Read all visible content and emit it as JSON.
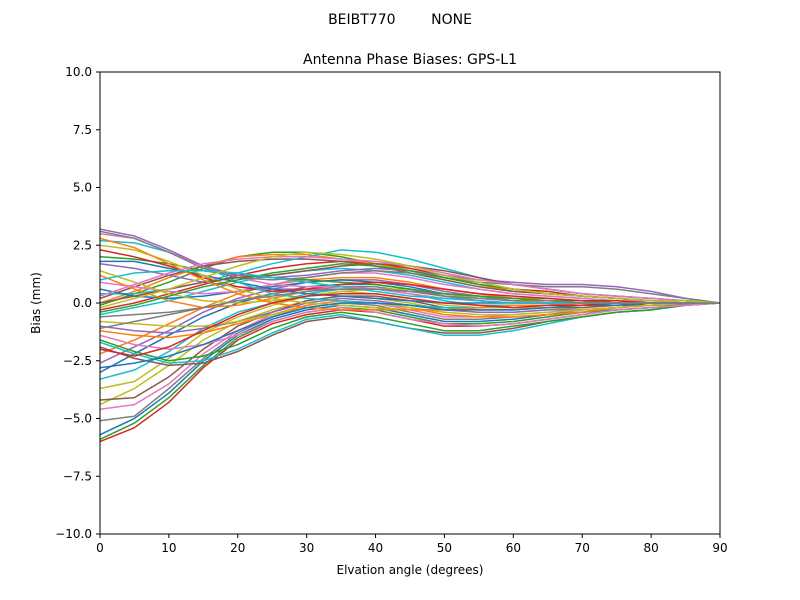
{
  "chart_data": {
    "type": "line",
    "suptitle": "BEIBT770        NONE",
    "title": "Antenna Phase Biases: GPS-L1",
    "xlabel": "Elvation angle (degrees)",
    "ylabel": "Bias (mm)",
    "xlim": [
      0,
      90
    ],
    "ylim": [
      -10,
      10
    ],
    "xticks": [
      "0",
      "10",
      "20",
      "30",
      "40",
      "50",
      "60",
      "70",
      "80",
      "90"
    ],
    "yticks": [
      "-10.0",
      "-7.5",
      "-5.0",
      "-2.5",
      "0.0",
      "2.5",
      "5.0",
      "7.5",
      "10.0"
    ],
    "grid": false,
    "legend": "none",
    "x": [
      0,
      5,
      10,
      15,
      20,
      25,
      30,
      35,
      40,
      45,
      50,
      55,
      60,
      65,
      70,
      75,
      80,
      85,
      90
    ],
    "series": [
      {
        "color": "#d62728",
        "values": [
          -6.0,
          -5.4,
          -4.3,
          -2.8,
          -1.6,
          -0.9,
          -0.5,
          -0.3,
          -0.4,
          -0.7,
          -1.0,
          -1.0,
          -0.9,
          -0.7,
          -0.5,
          -0.3,
          -0.2,
          -0.1,
          0.0
        ]
      },
      {
        "color": "#2ca02c",
        "values": [
          -5.9,
          -5.2,
          -4.1,
          -2.7,
          -1.5,
          -0.8,
          -0.4,
          -0.2,
          -0.3,
          -0.6,
          -0.9,
          -0.9,
          -0.8,
          -0.6,
          -0.4,
          -0.3,
          -0.2,
          -0.1,
          0.0
        ]
      },
      {
        "color": "#1f77b4",
        "values": [
          -5.7,
          -5.0,
          -3.9,
          -2.5,
          -1.4,
          -0.7,
          -0.3,
          -0.1,
          -0.2,
          -0.5,
          -0.8,
          -0.8,
          -0.7,
          -0.5,
          -0.4,
          -0.2,
          -0.1,
          -0.05,
          0.0
        ]
      },
      {
        "color": "#7f7f7f",
        "values": [
          -5.1,
          -4.9,
          -3.7,
          -2.4,
          -1.3,
          -0.6,
          -0.2,
          0.0,
          -0.1,
          -0.4,
          -0.7,
          -0.7,
          -0.6,
          -0.5,
          -0.3,
          -0.2,
          -0.1,
          -0.05,
          0.0
        ]
      },
      {
        "color": "#e377c2",
        "values": [
          -4.6,
          -4.4,
          -3.5,
          -2.2,
          -1.2,
          -0.5,
          -0.1,
          0.1,
          0.0,
          -0.3,
          -0.6,
          -0.6,
          -0.5,
          -0.4,
          -0.3,
          -0.2,
          -0.1,
          0.0,
          0.0
        ]
      },
      {
        "color": "#bcbd22",
        "values": [
          -4.4,
          -3.7,
          -2.7,
          -1.6,
          -0.8,
          -0.3,
          0.1,
          0.3,
          0.2,
          0.0,
          -0.3,
          -0.4,
          -0.4,
          -0.3,
          -0.2,
          -0.1,
          -0.1,
          0.0,
          0.0
        ]
      },
      {
        "color": "#8c564b",
        "values": [
          -4.2,
          -4.1,
          -3.2,
          -2.0,
          -1.0,
          -0.4,
          0.1,
          0.3,
          0.3,
          0.1,
          -0.2,
          -0.3,
          -0.3,
          -0.2,
          -0.2,
          -0.1,
          -0.1,
          0.0,
          0.0
        ]
      },
      {
        "color": "#bcbd22",
        "values": [
          -3.7,
          -3.4,
          -2.4,
          -1.3,
          -0.6,
          -0.1,
          0.3,
          0.5,
          0.4,
          0.2,
          -0.1,
          -0.2,
          -0.2,
          -0.2,
          -0.1,
          -0.1,
          0.0,
          0.0,
          0.0
        ]
      },
      {
        "color": "#17becf",
        "values": [
          -3.3,
          -2.9,
          -2.1,
          -1.1,
          -0.4,
          0.0,
          0.4,
          0.6,
          0.6,
          0.4,
          0.1,
          -0.1,
          -0.1,
          -0.1,
          -0.1,
          0.0,
          0.0,
          0.0,
          0.0
        ]
      },
      {
        "color": "#1f77b4",
        "values": [
          -3.0,
          -2.2,
          -1.4,
          -0.6,
          0.0,
          0.4,
          0.7,
          0.8,
          0.8,
          0.6,
          0.3,
          0.1,
          0.0,
          0.0,
          0.0,
          0.0,
          0.0,
          0.0,
          0.0
        ]
      },
      {
        "color": "#9467bd",
        "values": [
          -2.6,
          -1.9,
          -1.2,
          -0.4,
          0.2,
          0.6,
          0.9,
          1.0,
          1.0,
          0.8,
          0.5,
          0.3,
          0.1,
          0.1,
          0.1,
          0.0,
          0.0,
          0.0,
          0.0
        ]
      },
      {
        "color": "#ff7f0e",
        "values": [
          -2.2,
          -1.6,
          -0.9,
          -0.2,
          0.4,
          0.8,
          1.0,
          1.1,
          1.1,
          0.9,
          0.6,
          0.4,
          0.2,
          0.2,
          0.1,
          0.1,
          0.0,
          0.0,
          0.0
        ]
      },
      {
        "color": "#8c564b",
        "values": [
          -1.9,
          -2.4,
          -2.7,
          -2.6,
          -2.1,
          -1.4,
          -0.8,
          -0.6,
          -0.8,
          -1.1,
          -1.3,
          -1.3,
          -1.1,
          -0.8,
          -0.6,
          -0.4,
          -0.3,
          -0.1,
          0.0
        ]
      },
      {
        "color": "#17becf",
        "values": [
          -1.7,
          -2.2,
          -2.6,
          -2.5,
          -2.0,
          -1.3,
          -0.7,
          -0.5,
          -0.8,
          -1.1,
          -1.4,
          -1.4,
          -1.2,
          -0.9,
          -0.6,
          -0.4,
          -0.3,
          -0.1,
          0.0
        ]
      },
      {
        "color": "#2ca02c",
        "values": [
          -1.6,
          -2.1,
          -2.5,
          -2.3,
          -1.8,
          -1.1,
          -0.6,
          -0.4,
          -0.6,
          -0.9,
          -1.2,
          -1.2,
          -1.0,
          -0.8,
          -0.6,
          -0.4,
          -0.3,
          -0.1,
          0.0
        ]
      },
      {
        "color": "#e377c2",
        "values": [
          -1.4,
          -1.8,
          -2.0,
          -1.8,
          -1.4,
          -0.8,
          -0.4,
          -0.2,
          -0.4,
          -0.7,
          -0.9,
          -1.0,
          -0.9,
          -0.7,
          -0.5,
          -0.3,
          -0.2,
          -0.1,
          0.0
        ]
      },
      {
        "color": "#ff7f0e",
        "values": [
          -1.2,
          -1.4,
          -1.5,
          -1.3,
          -0.9,
          -0.5,
          -0.1,
          0.1,
          0.0,
          -0.2,
          -0.5,
          -0.6,
          -0.6,
          -0.5,
          -0.4,
          -0.2,
          -0.1,
          0.0,
          0.0
        ]
      },
      {
        "color": "#9467bd",
        "values": [
          -1.0,
          -1.2,
          -1.3,
          -1.1,
          -0.8,
          -0.4,
          0.0,
          0.2,
          0.1,
          -0.1,
          -0.3,
          -0.4,
          -0.4,
          -0.3,
          -0.3,
          -0.2,
          -0.1,
          0.0,
          0.0
        ]
      },
      {
        "color": "#bcbd22",
        "values": [
          -0.8,
          -0.9,
          -1.0,
          -1.0,
          -0.8,
          -0.5,
          -0.2,
          0.0,
          0.0,
          -0.2,
          -0.4,
          -0.5,
          -0.5,
          -0.4,
          -0.3,
          -0.2,
          -0.1,
          0.0,
          0.0
        ]
      },
      {
        "color": "#7f7f7f",
        "values": [
          -0.6,
          -0.5,
          -0.4,
          -0.2,
          0.1,
          0.4,
          0.6,
          0.7,
          0.7,
          0.5,
          0.3,
          0.1,
          0.0,
          0.0,
          0.0,
          0.0,
          0.0,
          0.0,
          0.0
        ]
      },
      {
        "color": "#17becf",
        "values": [
          -0.5,
          -0.2,
          0.1,
          0.5,
          0.9,
          1.2,
          1.4,
          1.5,
          1.4,
          1.2,
          0.9,
          0.6,
          0.4,
          0.3,
          0.2,
          0.1,
          0.1,
          0.0,
          0.0
        ]
      },
      {
        "color": "#d62728",
        "values": [
          -0.3,
          0.0,
          0.4,
          0.8,
          1.2,
          1.5,
          1.7,
          1.8,
          1.7,
          1.5,
          1.2,
          0.9,
          0.6,
          0.5,
          0.3,
          0.2,
          0.1,
          0.1,
          0.0
        ]
      },
      {
        "color": "#2ca02c",
        "values": [
          -0.1,
          0.4,
          0.9,
          1.5,
          2.0,
          2.2,
          2.2,
          2.0,
          1.7,
          1.4,
          1.1,
          0.8,
          0.6,
          0.4,
          0.3,
          0.2,
          0.1,
          0.1,
          0.0
        ]
      },
      {
        "color": "#ff7f0e",
        "values": [
          0.0,
          0.5,
          1.1,
          1.6,
          2.0,
          2.1,
          2.1,
          1.9,
          1.7,
          1.4,
          1.1,
          0.8,
          0.5,
          0.4,
          0.3,
          0.2,
          0.1,
          0.1,
          0.0
        ]
      },
      {
        "color": "#8c564b",
        "values": [
          0.2,
          0.7,
          1.2,
          1.6,
          1.8,
          1.9,
          1.9,
          1.8,
          1.6,
          1.3,
          1.0,
          0.7,
          0.5,
          0.4,
          0.3,
          0.2,
          0.1,
          0.1,
          0.0
        ]
      },
      {
        "color": "#17becf",
        "values": [
          0.4,
          0.4,
          0.6,
          0.9,
          1.3,
          1.7,
          2.0,
          2.3,
          2.2,
          1.9,
          1.5,
          1.1,
          0.8,
          0.6,
          0.4,
          0.3,
          0.2,
          0.1,
          0.0
        ]
      },
      {
        "color": "#1f77b4",
        "values": [
          0.6,
          0.3,
          0.2,
          0.3,
          0.5,
          0.7,
          0.9,
          1.0,
          0.9,
          0.7,
          0.4,
          0.2,
          0.1,
          0.0,
          0.0,
          0.0,
          0.0,
          0.0,
          0.0
        ]
      },
      {
        "color": "#e377c2",
        "values": [
          0.9,
          0.7,
          0.5,
          0.4,
          0.5,
          0.8,
          1.1,
          1.3,
          1.3,
          1.1,
          0.8,
          0.6,
          0.4,
          0.3,
          0.2,
          0.1,
          0.1,
          0.0,
          0.0
        ]
      },
      {
        "color": "#ff7f0e",
        "values": [
          1.2,
          0.6,
          0.1,
          -0.2,
          -0.1,
          0.2,
          0.5,
          0.8,
          0.9,
          0.8,
          0.6,
          0.4,
          0.2,
          0.1,
          0.1,
          0.0,
          0.0,
          0.0,
          0.0
        ]
      },
      {
        "color": "#bcbd22",
        "values": [
          1.4,
          0.9,
          0.4,
          0.1,
          0.0,
          0.1,
          0.3,
          0.5,
          0.6,
          0.6,
          0.4,
          0.2,
          0.1,
          0.0,
          0.0,
          0.0,
          0.0,
          0.0,
          0.0
        ]
      },
      {
        "color": "#9467bd",
        "values": [
          1.7,
          1.5,
          1.2,
          0.9,
          0.7,
          0.6,
          0.6,
          0.6,
          0.6,
          0.5,
          0.4,
          0.3,
          0.2,
          0.1,
          0.1,
          0.0,
          0.0,
          0.0,
          0.0
        ]
      },
      {
        "color": "#1f77b4",
        "values": [
          1.8,
          1.8,
          1.5,
          1.2,
          0.9,
          0.6,
          0.4,
          0.3,
          0.2,
          0.1,
          0.0,
          0.0,
          0.0,
          0.0,
          0.0,
          0.0,
          0.0,
          0.0,
          0.0
        ]
      },
      {
        "color": "#2ca02c",
        "values": [
          2.0,
          1.9,
          1.7,
          1.4,
          1.2,
          1.1,
          1.0,
          0.9,
          0.8,
          0.6,
          0.4,
          0.3,
          0.2,
          0.1,
          0.1,
          0.0,
          0.0,
          0.0,
          0.0
        ]
      },
      {
        "color": "#d62728",
        "values": [
          2.3,
          2.0,
          1.6,
          1.1,
          0.7,
          0.5,
          0.6,
          0.8,
          0.9,
          0.8,
          0.6,
          0.4,
          0.3,
          0.2,
          0.1,
          0.1,
          0.0,
          0.0,
          0.0
        ]
      },
      {
        "color": "#bcbd22",
        "values": [
          2.5,
          2.3,
          1.8,
          1.2,
          0.6,
          0.2,
          0.0,
          -0.1,
          -0.2,
          -0.3,
          -0.3,
          -0.2,
          -0.2,
          -0.1,
          -0.1,
          0.0,
          0.0,
          0.0,
          0.0
        ]
      },
      {
        "color": "#17becf",
        "values": [
          2.7,
          2.6,
          2.2,
          1.6,
          0.9,
          0.4,
          0.2,
          0.1,
          0.0,
          -0.1,
          -0.2,
          -0.2,
          -0.1,
          -0.1,
          0.0,
          0.0,
          0.0,
          0.0,
          0.0
        ]
      },
      {
        "color": "#e377c2",
        "values": [
          3.0,
          2.8,
          2.2,
          1.6,
          1.1,
          0.8,
          0.7,
          0.7,
          0.6,
          0.4,
          0.2,
          0.1,
          0.0,
          0.0,
          0.0,
          0.0,
          0.0,
          0.0,
          0.0
        ]
      },
      {
        "color": "#9467bd",
        "values": [
          3.2,
          2.9,
          2.3,
          1.6,
          1.2,
          1.1,
          1.2,
          1.4,
          1.5,
          1.4,
          1.2,
          1.0,
          0.9,
          0.8,
          0.8,
          0.7,
          0.5,
          0.2,
          0.0
        ]
      },
      {
        "color": "#7f7f7f",
        "values": [
          3.1,
          2.8,
          2.2,
          1.5,
          1.1,
          1.0,
          1.1,
          1.3,
          1.4,
          1.3,
          1.1,
          0.9,
          0.8,
          0.7,
          0.7,
          0.6,
          0.4,
          0.2,
          0.0
        ]
      },
      {
        "color": "#8c564b",
        "values": [
          0.0,
          0.3,
          0.6,
          0.9,
          1.1,
          1.2,
          1.4,
          1.6,
          1.7,
          1.6,
          1.4,
          1.1,
          0.8,
          0.6,
          0.4,
          0.3,
          0.2,
          0.1,
          0.0
        ]
      },
      {
        "color": "#2ca02c",
        "values": [
          -0.4,
          -0.1,
          0.3,
          0.7,
          1.0,
          1.3,
          1.5,
          1.7,
          1.6,
          1.4,
          1.1,
          0.8,
          0.6,
          0.4,
          0.3,
          0.2,
          0.1,
          0.1,
          0.0
        ]
      },
      {
        "color": "#ff7f0e",
        "values": [
          2.8,
          2.4,
          1.7,
          1.0,
          0.4,
          0.0,
          -0.2,
          -0.3,
          -0.3,
          -0.3,
          -0.3,
          -0.2,
          -0.1,
          -0.1,
          0.0,
          0.0,
          0.0,
          0.0,
          0.0
        ]
      },
      {
        "color": "#1f77b4",
        "values": [
          -2.8,
          -2.6,
          -2.3,
          -1.8,
          -1.2,
          -0.6,
          -0.2,
          0.0,
          0.0,
          -0.1,
          -0.3,
          -0.3,
          -0.3,
          -0.2,
          -0.1,
          -0.1,
          0.0,
          0.0,
          0.0
        ]
      },
      {
        "color": "#d62728",
        "values": [
          -2.0,
          -2.3,
          -1.9,
          -1.2,
          -0.5,
          0.0,
          0.3,
          0.4,
          0.4,
          0.2,
          0.0,
          -0.1,
          -0.2,
          -0.1,
          -0.1,
          0.0,
          0.0,
          0.0,
          0.0
        ]
      },
      {
        "color": "#e377c2",
        "values": [
          0.3,
          0.8,
          1.3,
          1.7,
          1.9,
          2.0,
          2.0,
          1.9,
          1.8,
          1.6,
          1.3,
          1.0,
          0.8,
          0.6,
          0.4,
          0.3,
          0.2,
          0.1,
          0.0
        ]
      },
      {
        "color": "#17becf",
        "values": [
          1.0,
          1.3,
          1.4,
          1.4,
          1.3,
          1.1,
          0.9,
          0.7,
          0.5,
          0.3,
          0.2,
          0.1,
          0.0,
          0.0,
          0.0,
          0.0,
          0.0,
          0.0,
          0.0
        ]
      },
      {
        "color": "#bcbd22",
        "values": [
          -0.2,
          0.2,
          0.6,
          1.1,
          1.6,
          2.0,
          2.2,
          2.1,
          1.9,
          1.6,
          1.2,
          0.9,
          0.6,
          0.4,
          0.3,
          0.2,
          0.1,
          0.1,
          0.0
        ]
      },
      {
        "color": "#7f7f7f",
        "values": [
          -1.1,
          -0.8,
          -0.5,
          -0.2,
          0.1,
          0.3,
          0.5,
          0.6,
          0.6,
          0.5,
          0.3,
          0.2,
          0.1,
          0.1,
          0.0,
          0.0,
          0.0,
          0.0,
          0.0
        ]
      }
    ]
  }
}
